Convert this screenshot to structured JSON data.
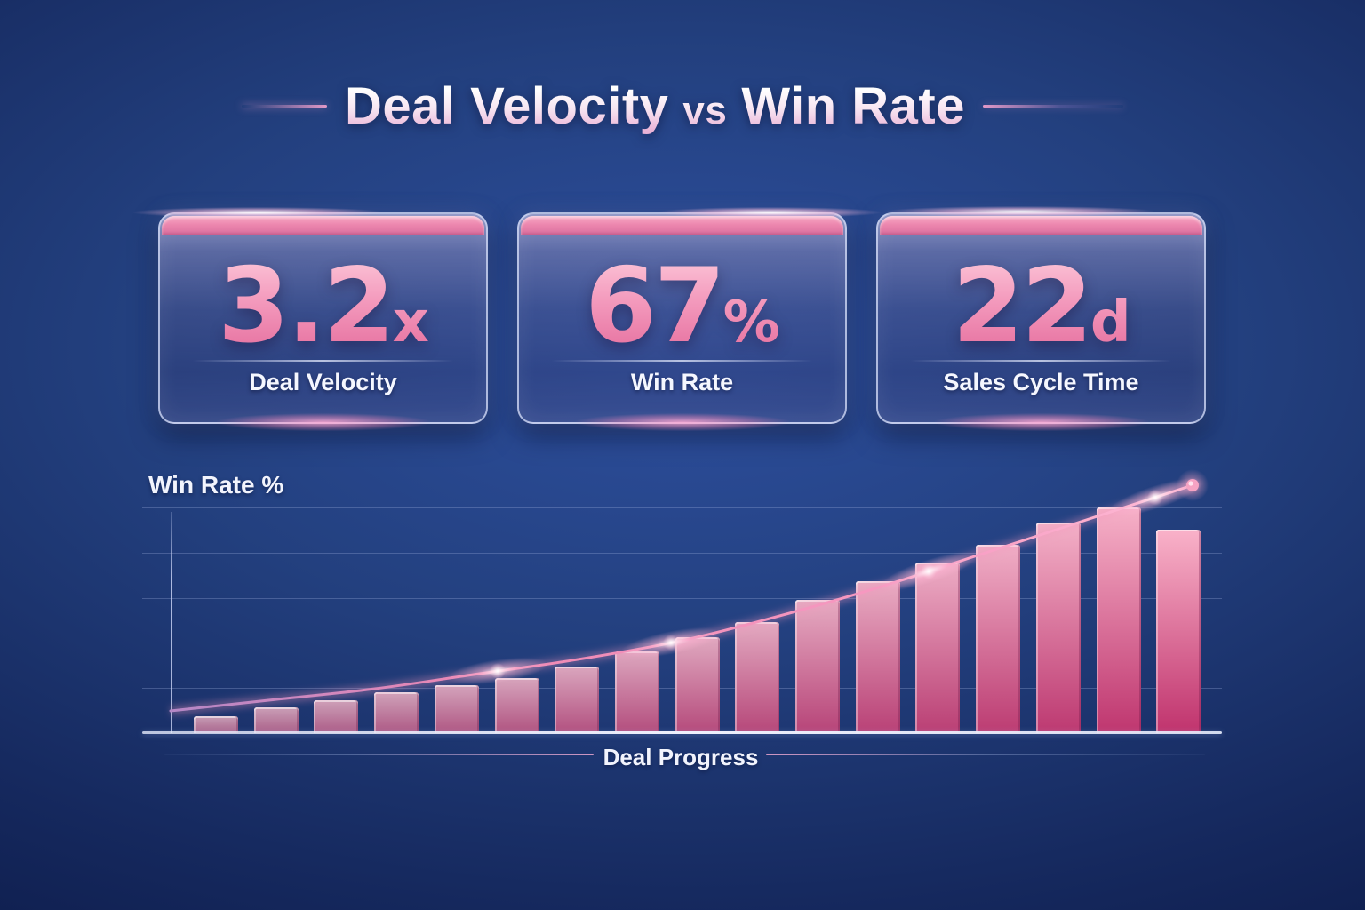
{
  "title": {
    "left": "Deal Velocity",
    "connector": "vs",
    "right": "Win Rate"
  },
  "stat_cards": [
    {
      "value": "3.2",
      "suffix": "x",
      "label": "Deal Velocity"
    },
    {
      "value": "67",
      "suffix": "%",
      "label": "Win Rate"
    },
    {
      "value": "22",
      "suffix": "d",
      "label": "Sales Cycle Time"
    }
  ],
  "chart_data": {
    "type": "bar",
    "title": "",
    "ylabel": "Win Rate %",
    "xlabel": "Deal Progress",
    "ylim": [
      0,
      70
    ],
    "grid": true,
    "legend": "none",
    "x_tick_labels": [],
    "values": [
      4.5,
      7,
      9,
      11,
      13,
      15,
      18,
      22,
      26,
      30,
      36,
      41,
      46,
      51,
      57,
      61,
      55
    ],
    "line_series": {
      "name": "win-rate-trend",
      "values": [
        6,
        9,
        12,
        16,
        20,
        25,
        32,
        40,
        49,
        58,
        67
      ],
      "endpoint_marker": true
    },
    "colors": {
      "bar_top_first": "#c79fb7",
      "bar_bottom_first": "#a96189",
      "bar_top_last": "#f9b2c9",
      "bar_bottom_last": "#c0336d",
      "line_start": "#b487c6",
      "line_mid": "#ee88b4",
      "line_end": "#ffbcd6",
      "dot": "#f6a3c3",
      "grid": "#a2b2e0",
      "axis": "#eef1fd",
      "accent_pink": "#ec86ae",
      "background_navy": "#0c1a48"
    }
  }
}
